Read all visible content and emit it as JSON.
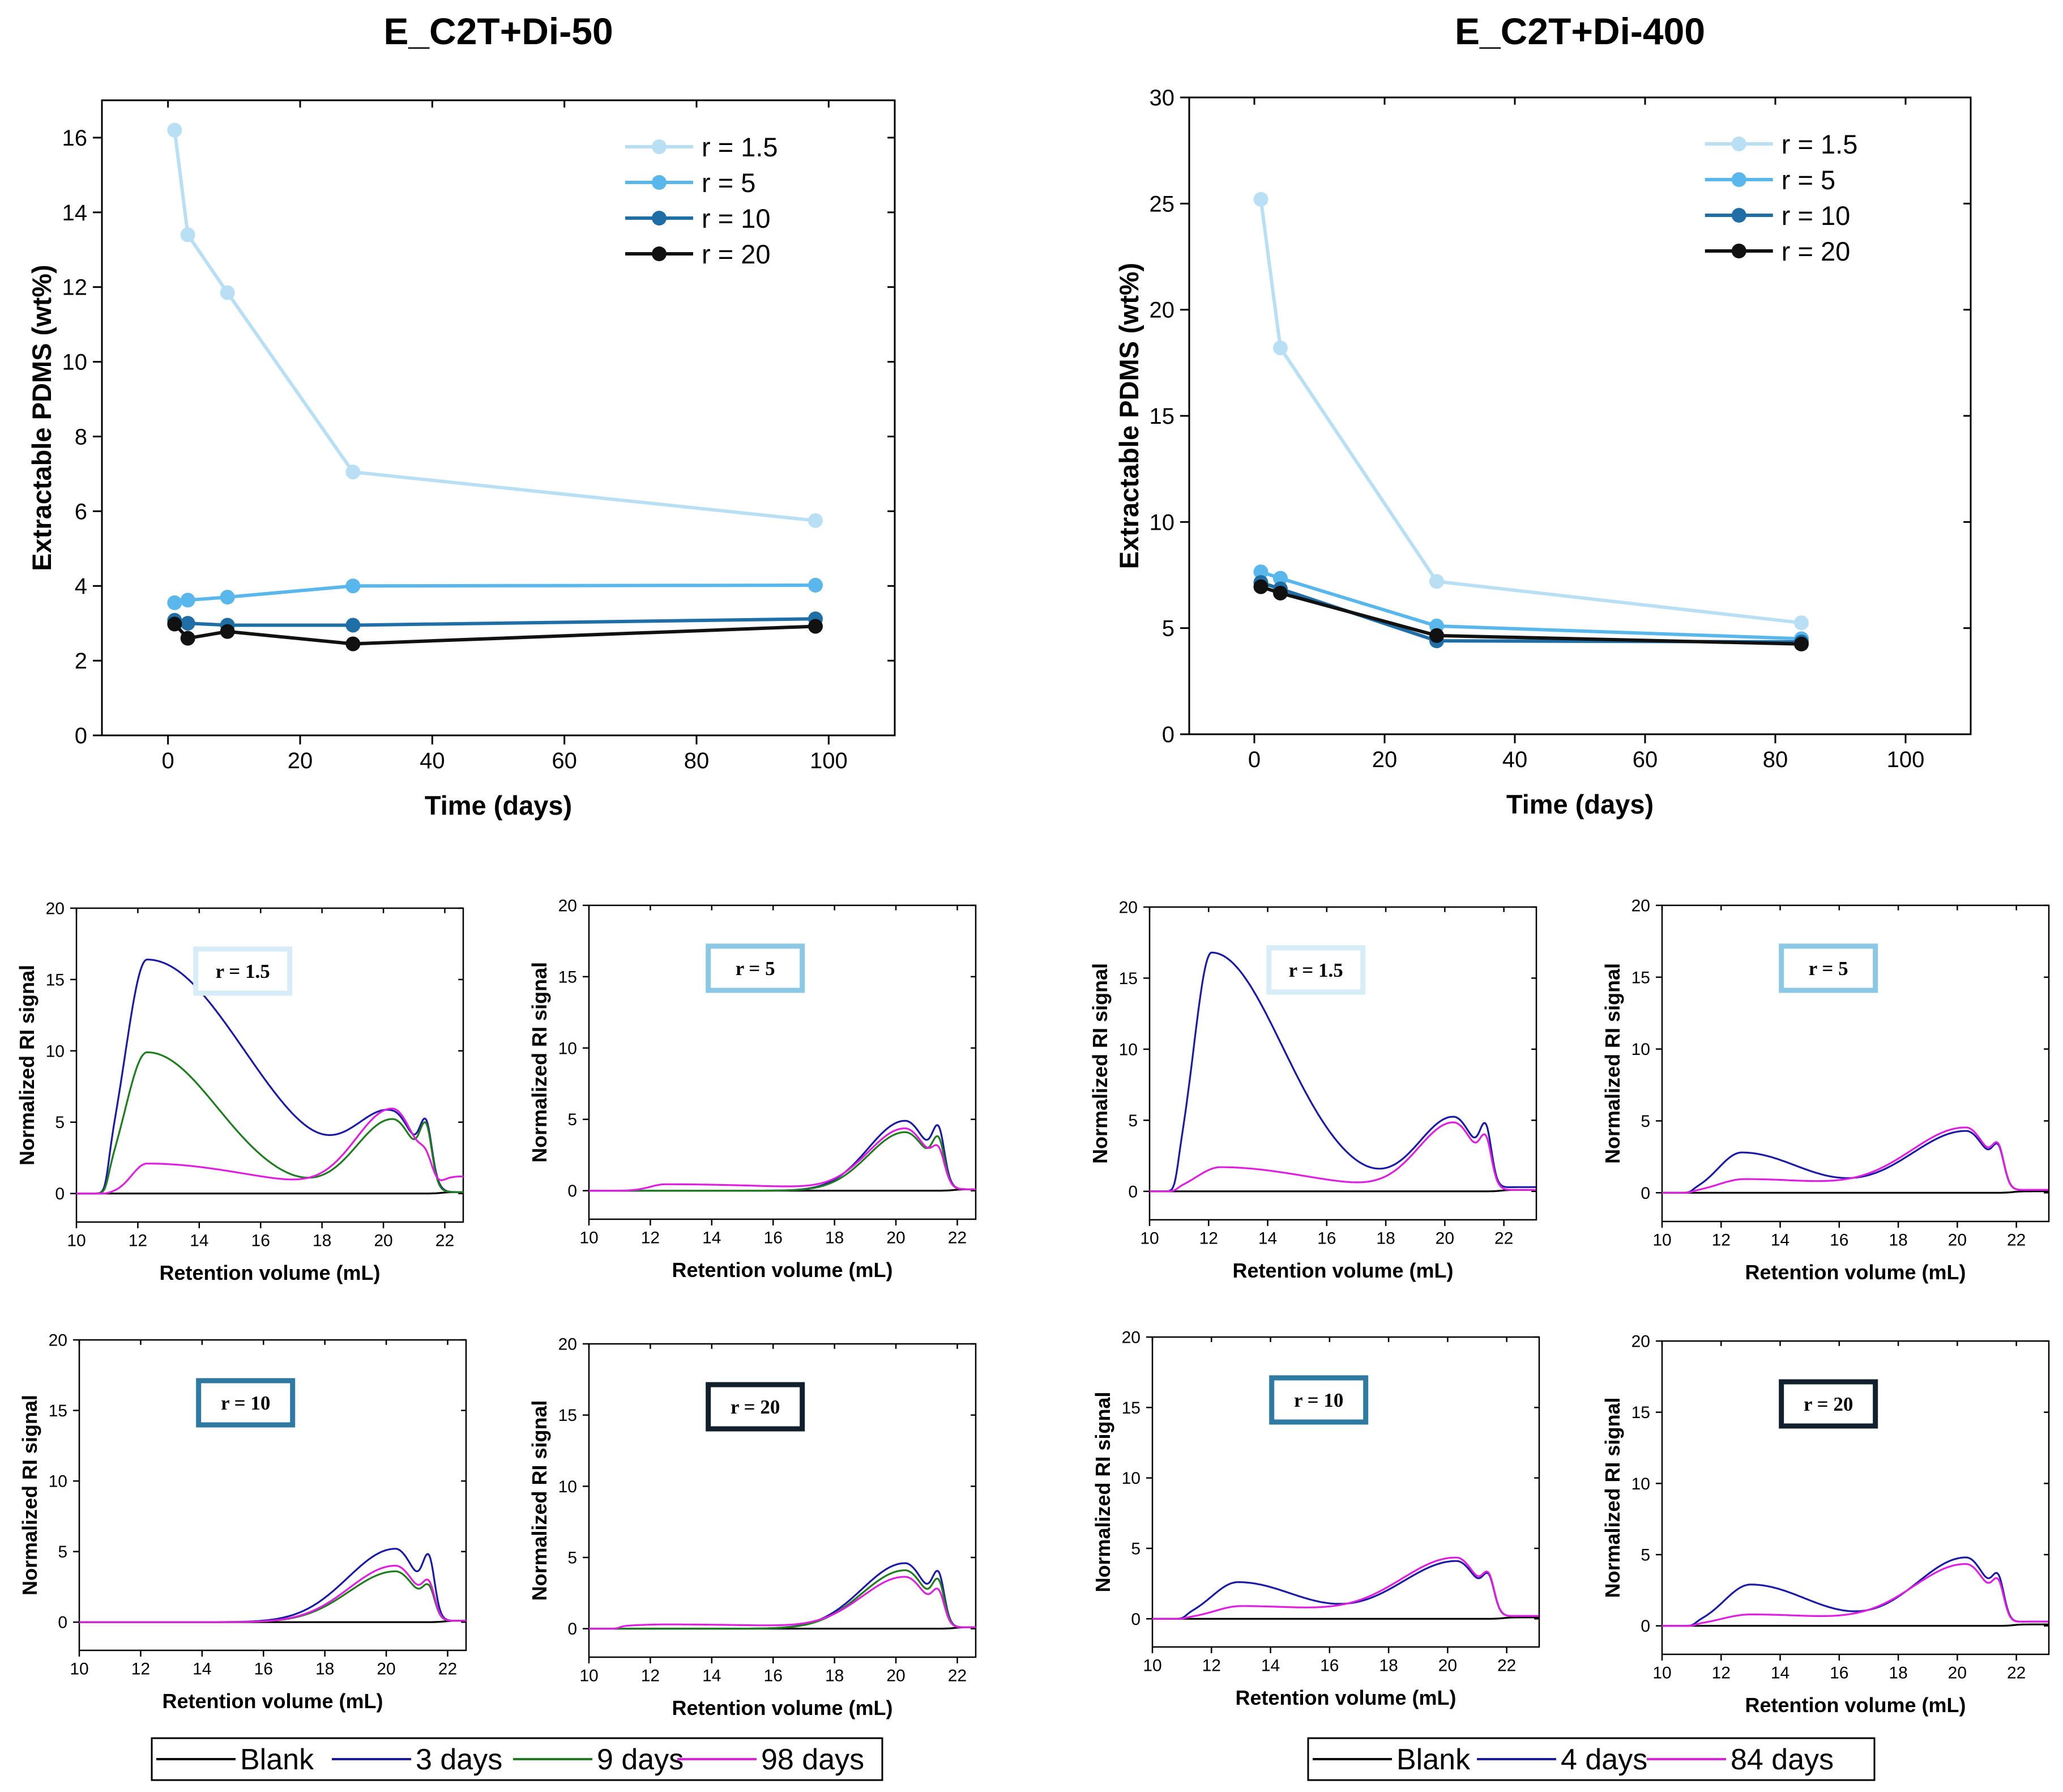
{
  "colors": {
    "r1_5": "#b8dff3",
    "r5": "#5ab7eb",
    "r10": "#1f6fa6",
    "r20": "#111111",
    "blank": "#000000",
    "blue": "#1a1aa6",
    "green": "#1e7d1e",
    "magenta": "#e01ee0",
    "box_r1_5": "#d7ecf7",
    "box_r5": "#8cc7e3",
    "box_r10": "#2f7aa3",
    "box_r20": "#11202c"
  },
  "chart_data": [
    {
      "id": "extract-50",
      "type": "line",
      "title": "E_C2T+Di-50",
      "xlabel": "Time (days)",
      "ylabel": "Extractable PDMS (wt%)",
      "xlim": [
        -10,
        110
      ],
      "ylim": [
        0,
        17
      ],
      "xticks": [
        0,
        20,
        40,
        60,
        80,
        100
      ],
      "yticks": [
        0,
        2,
        4,
        6,
        8,
        10,
        12,
        14,
        16
      ],
      "series": [
        {
          "name": "r = 1.5",
          "colorKey": "r1_5",
          "x": [
            1,
            3,
            9,
            28,
            98
          ],
          "y": [
            16.2,
            13.4,
            11.85,
            7.05,
            5.75
          ]
        },
        {
          "name": "r = 5",
          "colorKey": "r5",
          "x": [
            1,
            3,
            9,
            28,
            98
          ],
          "y": [
            3.55,
            3.62,
            3.7,
            4.0,
            4.02
          ]
        },
        {
          "name": "r = 10",
          "colorKey": "r10",
          "x": [
            1,
            3,
            9,
            28,
            98
          ],
          "y": [
            3.08,
            3.0,
            2.95,
            2.95,
            3.12
          ]
        },
        {
          "name": "r = 20",
          "colorKey": "r20",
          "x": [
            1,
            3,
            9,
            28,
            98
          ],
          "y": [
            2.98,
            2.6,
            2.78,
            2.45,
            2.92
          ]
        }
      ]
    },
    {
      "id": "extract-400",
      "type": "line",
      "title": "E_C2T+Di-400",
      "xlabel": "Time (days)",
      "ylabel": "Extractable PDMS (wt%)",
      "xlim": [
        -10,
        110
      ],
      "ylim": [
        0,
        30
      ],
      "xticks": [
        0,
        20,
        40,
        60,
        80,
        100
      ],
      "yticks": [
        0,
        5,
        10,
        15,
        20,
        25,
        30
      ],
      "series": [
        {
          "name": "r = 1.5",
          "colorKey": "r1_5",
          "x": [
            1,
            4,
            28,
            84
          ],
          "y": [
            25.2,
            18.2,
            7.2,
            5.25
          ]
        },
        {
          "name": "r = 5",
          "colorKey": "r5",
          "x": [
            1,
            4,
            28,
            84
          ],
          "y": [
            7.65,
            7.35,
            5.1,
            4.5
          ]
        },
        {
          "name": "r = 10",
          "colorKey": "r10",
          "x": [
            1,
            4,
            28,
            84
          ],
          "y": [
            7.15,
            6.85,
            4.4,
            4.35
          ]
        },
        {
          "name": "r = 20",
          "colorKey": "r20",
          "x": [
            1,
            4,
            28,
            84
          ],
          "y": [
            6.95,
            6.65,
            4.65,
            4.25
          ]
        }
      ]
    },
    {
      "id": "gpc-50-r1.5",
      "type": "line",
      "label": "r = 1.5",
      "boxColorKey": "box_r1_5",
      "xlabel": "Retention volume (mL)",
      "ylabel": "Normalized RI signal",
      "xlim": [
        10,
        22.6
      ],
      "ylim": [
        -2,
        20
      ],
      "xticks": [
        10,
        12,
        14,
        16,
        18,
        20,
        22
      ],
      "yticks": [
        0,
        5,
        10,
        15,
        20
      ],
      "series": [
        {
          "name": "Blank",
          "colorKey": "blank",
          "curve": {
            "p1": [
              0,
              12.3,
              0.8,
              2.0
            ],
            "p2": [
              0,
              20.3,
              1.05,
              1.05
            ],
            "s1": 0,
            "start": 11.0,
            "tail": 0.1
          }
        },
        {
          "name": "3 days",
          "colorKey": "blue",
          "curve": {
            "p1": [
              16.4,
              12.3,
              0.7,
              3.2
            ],
            "p2": [
              5.1,
              20.3,
              1.2,
              0.75
            ],
            "s1": 3.2,
            "start": 11.0,
            "tail": 0.1
          }
        },
        {
          "name": "9 days",
          "colorKey": "green",
          "curve": {
            "p1": [
              9.9,
              12.3,
              0.7,
              2.3
            ],
            "p2": [
              5.2,
              20.3,
              1.2,
              0.75
            ],
            "s1": 3.2,
            "start": 11.0,
            "tail": 0.1
          }
        },
        {
          "name": "98 days",
          "colorKey": "magenta",
          "curve": {
            "p1": [
              2.1,
              12.3,
              0.5,
              3.5
            ],
            "p2": [
              5.8,
              20.3,
              1.2,
              0.75
            ],
            "s1": 1.0,
            "start": 11.0,
            "tail": 1.2
          }
        }
      ]
    },
    {
      "id": "gpc-50-r5",
      "type": "line",
      "label": "r = 5",
      "boxColorKey": "box_r5",
      "xlabel": "Retention volume (mL)",
      "ylabel": "Normalized RI signal",
      "xlim": [
        10,
        22.6
      ],
      "ylim": [
        -2,
        20
      ],
      "xticks": [
        10,
        12,
        14,
        16,
        18,
        20,
        22
      ],
      "yticks": [
        0,
        5,
        10,
        15,
        20
      ],
      "series": [
        {
          "name": "Blank",
          "colorKey": "blank",
          "curve": {
            "p1": [
              0,
              12.5,
              0.8,
              2.0
            ],
            "p2": [
              0,
              20.3,
              1.05,
              1.05
            ],
            "s1": 0,
            "start": 11.0,
            "tail": 0.1
          }
        },
        {
          "name": "3 days",
          "colorKey": "blue",
          "curve": {
            "p1": [
              0,
              12.5,
              0.8,
              2.0
            ],
            "p2": [
              4.9,
              20.3,
              1.2,
              0.75
            ],
            "s1": 2.9,
            "start": 11.0,
            "tail": 0.1
          }
        },
        {
          "name": "9 days",
          "colorKey": "green",
          "curve": {
            "p1": [
              0,
              12.5,
              0.8,
              2.0
            ],
            "p2": [
              4.1,
              20.3,
              1.2,
              0.75
            ],
            "s1": 2.4,
            "start": 11.0,
            "tail": 0.1
          }
        },
        {
          "name": "98 days",
          "colorKey": "magenta",
          "curve": {
            "p1": [
              0.45,
              12.5,
              0.5,
              4.0
            ],
            "p2": [
              4.3,
              20.3,
              1.2,
              0.75
            ],
            "s1": 1.6,
            "start": 11.0,
            "tail": 0.1
          }
        }
      ]
    },
    {
      "id": "gpc-50-r10",
      "type": "line",
      "label": "r = 10",
      "boxColorKey": "box_r10",
      "xlabel": "Retention volume (mL)",
      "ylabel": "Normalized RI signal",
      "xlim": [
        10,
        22.6
      ],
      "ylim": [
        -2,
        20
      ],
      "xticks": [
        10,
        12,
        14,
        16,
        18,
        20,
        22
      ],
      "yticks": [
        0,
        5,
        10,
        15,
        20
      ],
      "series": [
        {
          "name": "Blank",
          "colorKey": "blank",
          "curve": {
            "p1": [
              0,
              12.5,
              0.8,
              2.0
            ],
            "p2": [
              0,
              20.3,
              1.05,
              1.05
            ],
            "s1": 0,
            "start": 11.0,
            "tail": 0.1
          }
        },
        {
          "name": "3 days",
          "colorKey": "blue",
          "curve": {
            "p1": [
              0,
              12.5,
              0.8,
              2.0
            ],
            "p2": [
              5.2,
              20.3,
              1.55,
              0.7
            ],
            "s1": 3.3,
            "start": 11.0,
            "tail": 0.1
          }
        },
        {
          "name": "9 days",
          "colorKey": "green",
          "curve": {
            "p1": [
              0,
              12.5,
              0.8,
              2.0
            ],
            "p2": [
              3.6,
              20.3,
              1.5,
              0.7
            ],
            "s1": 1.6,
            "start": 11.0,
            "tail": 0.1
          }
        },
        {
          "name": "98 days",
          "colorKey": "magenta",
          "curve": {
            "p1": [
              0,
              12.5,
              0.8,
              2.0
            ],
            "p2": [
              4.0,
              20.3,
              1.5,
              0.7
            ],
            "s1": 1.8,
            "start": 11.0,
            "tail": 0.1
          }
        }
      ]
    },
    {
      "id": "gpc-50-r20",
      "type": "line",
      "label": "r = 20",
      "boxColorKey": "box_r20",
      "xlabel": "Retention volume (mL)",
      "ylabel": "Normalized RI signal",
      "xlim": [
        10,
        22.6
      ],
      "ylim": [
        -2,
        20
      ],
      "xticks": [
        10,
        12,
        14,
        16,
        18,
        20,
        22
      ],
      "yticks": [
        0,
        5,
        10,
        15,
        20
      ],
      "series": [
        {
          "name": "Blank",
          "colorKey": "blank",
          "curve": {
            "p1": [
              0,
              12.5,
              0.8,
              2.0
            ],
            "p2": [
              0,
              20.3,
              1.05,
              1.05
            ],
            "s1": 0,
            "start": 11.0,
            "tail": 0.1
          }
        },
        {
          "name": "3 days",
          "colorKey": "blue",
          "curve": {
            "p1": [
              0,
              12.5,
              0.8,
              2.0
            ],
            "p2": [
              4.6,
              20.3,
              1.4,
              0.7
            ],
            "s1": 2.7,
            "start": 11.0,
            "tail": 0.1
          }
        },
        {
          "name": "9 days",
          "colorKey": "green",
          "curve": {
            "p1": [
              0,
              12.5,
              0.8,
              2.0
            ],
            "p2": [
              4.1,
              20.3,
              1.4,
              0.7
            ],
            "s1": 2.3,
            "start": 11.0,
            "tail": 0.1
          }
        },
        {
          "name": "98 days",
          "colorKey": "magenta",
          "curve": {
            "p1": [
              0.3,
              12.5,
              1.5,
              4.0
            ],
            "p2": [
              3.6,
              20.3,
              1.4,
              0.7
            ],
            "s1": 1.7,
            "start": 11.0,
            "tail": 0.1
          }
        }
      ]
    },
    {
      "id": "gpc-400-r1.5",
      "type": "line",
      "label": "r = 1.5",
      "boxColorKey": "box_r1_5",
      "xlabel": "Retention volume (mL)",
      "ylabel": "Normalized RI signal",
      "xlim": [
        10,
        23.1
      ],
      "ylim": [
        -2,
        20
      ],
      "xticks": [
        10,
        12,
        14,
        16,
        18,
        20,
        22
      ],
      "yticks": [
        0,
        5,
        10,
        15,
        20
      ],
      "series": [
        {
          "name": "Blank",
          "colorKey": "blank",
          "curve": {
            "p1": [
              0,
              12.1,
              0.6,
              2.4
            ],
            "p2": [
              0,
              20.3,
              1.1,
              0.75
            ],
            "s1": 0,
            "start": 10.9,
            "tail": 0.1
          }
        },
        {
          "name": "4 days",
          "colorKey": "blue",
          "curve": {
            "p1": [
              16.8,
              12.1,
              0.6,
              2.4
            ],
            "p2": [
              5.2,
              20.3,
              1.2,
              0.75
            ],
            "s1": 3.0,
            "start": 10.9,
            "tail": 0.3
          }
        },
        {
          "name": "84 days",
          "colorKey": "magenta",
          "curve": {
            "p1": [
              1.7,
              12.4,
              0.8,
              3.0
            ],
            "p2": [
              4.8,
              20.3,
              1.2,
              0.75
            ],
            "s1": 2.3,
            "start": 10.9,
            "tail": 0.1
          }
        }
      ]
    },
    {
      "id": "gpc-400-r5",
      "type": "line",
      "label": "r = 5",
      "boxColorKey": "box_r5",
      "xlabel": "Retention volume (mL)",
      "ylabel": "Normalized RI signal",
      "xlim": [
        10,
        23.1
      ],
      "ylim": [
        -2,
        20
      ],
      "xticks": [
        10,
        12,
        14,
        16,
        18,
        20,
        22
      ],
      "yticks": [
        0,
        5,
        10,
        15,
        20
      ],
      "series": [
        {
          "name": "Blank",
          "colorKey": "blank",
          "curve": {
            "p1": [
              0,
              12.7,
              0.8,
              2.0
            ],
            "p2": [
              0,
              20.3,
              1.1,
              0.75
            ],
            "s1": 0,
            "start": 11.0,
            "tail": 0.1
          }
        },
        {
          "name": "4 days",
          "colorKey": "blue",
          "curve": {
            "p1": [
              2.8,
              12.7,
              0.8,
              2.0
            ],
            "p2": [
              4.3,
              20.3,
              1.9,
              0.75
            ],
            "s1": 1.9,
            "start": 11.0,
            "tail": 0.2
          }
        },
        {
          "name": "84 days",
          "colorKey": "magenta",
          "curve": {
            "p1": [
              0.95,
              12.8,
              0.9,
              3.0
            ],
            "p2": [
              4.5,
              20.3,
              1.9,
              0.75
            ],
            "s1": 1.9,
            "start": 11.0,
            "tail": 0.2
          }
        }
      ]
    },
    {
      "id": "gpc-400-r10",
      "type": "line",
      "label": "r = 10",
      "boxColorKey": "box_r10",
      "xlabel": "Retention volume (mL)",
      "ylabel": "Normalized RI signal",
      "xlim": [
        10,
        23.1
      ],
      "ylim": [
        -2,
        20
      ],
      "xticks": [
        10,
        12,
        14,
        16,
        18,
        20,
        22
      ],
      "yticks": [
        0,
        5,
        10,
        15,
        20
      ],
      "series": [
        {
          "name": "Blank",
          "colorKey": "blank",
          "curve": {
            "p1": [
              0,
              12.9,
              0.9,
              2.0
            ],
            "p2": [
              0,
              20.3,
              1.1,
              0.75
            ],
            "s1": 0,
            "start": 11.1,
            "tail": 0.1
          }
        },
        {
          "name": "4 days",
          "colorKey": "blue",
          "curve": {
            "p1": [
              2.6,
              12.9,
              0.9,
              2.0
            ],
            "p2": [
              4.1,
              20.3,
              1.9,
              0.75
            ],
            "s1": 1.8,
            "start": 11.1,
            "tail": 0.2
          }
        },
        {
          "name": "84 days",
          "colorKey": "magenta",
          "curve": {
            "p1": [
              0.9,
              13.0,
              0.9,
              3.0
            ],
            "p2": [
              4.3,
              20.3,
              1.9,
              0.75
            ],
            "s1": 1.8,
            "start": 11.1,
            "tail": 0.2
          }
        }
      ]
    },
    {
      "id": "gpc-400-r20",
      "type": "line",
      "label": "r = 20",
      "boxColorKey": "box_r20",
      "xlabel": "Retention volume (mL)",
      "ylabel": "Normalized RI signal",
      "xlim": [
        10,
        23.1
      ],
      "ylim": [
        -2,
        20
      ],
      "xticks": [
        10,
        12,
        14,
        16,
        18,
        20,
        22
      ],
      "yticks": [
        0,
        5,
        10,
        15,
        20
      ],
      "series": [
        {
          "name": "Blank",
          "colorKey": "blank",
          "curve": {
            "p1": [
              0,
              13.0,
              0.9,
              2.0
            ],
            "p2": [
              0,
              20.3,
              1.1,
              0.75
            ],
            "s1": 0,
            "start": 11.1,
            "tail": 0.1
          }
        },
        {
          "name": "4 days",
          "colorKey": "blue",
          "curve": {
            "p1": [
              2.9,
              13.0,
              0.9,
              2.0
            ],
            "p2": [
              4.8,
              20.3,
              1.7,
              0.75
            ],
            "s1": 2.0,
            "start": 11.1,
            "tail": 0.3
          }
        },
        {
          "name": "84 days",
          "colorKey": "magenta",
          "curve": {
            "p1": [
              0.8,
              13.0,
              1.0,
              3.0
            ],
            "p2": [
              4.3,
              20.3,
              1.8,
              0.75
            ],
            "s1": 1.8,
            "start": 11.1,
            "tail": 0.3
          }
        }
      ]
    }
  ],
  "legends": {
    "left": {
      "items": [
        {
          "label": "Blank",
          "colorKey": "blank"
        },
        {
          "label": "3 days",
          "colorKey": "blue"
        },
        {
          "label": "9 days",
          "colorKey": "green"
        },
        {
          "label": "98 days",
          "colorKey": "magenta"
        }
      ]
    },
    "right": {
      "items": [
        {
          "label": "Blank",
          "colorKey": "blank"
        },
        {
          "label": "4 days",
          "colorKey": "blue"
        },
        {
          "label": "84 days",
          "colorKey": "magenta"
        }
      ]
    }
  }
}
